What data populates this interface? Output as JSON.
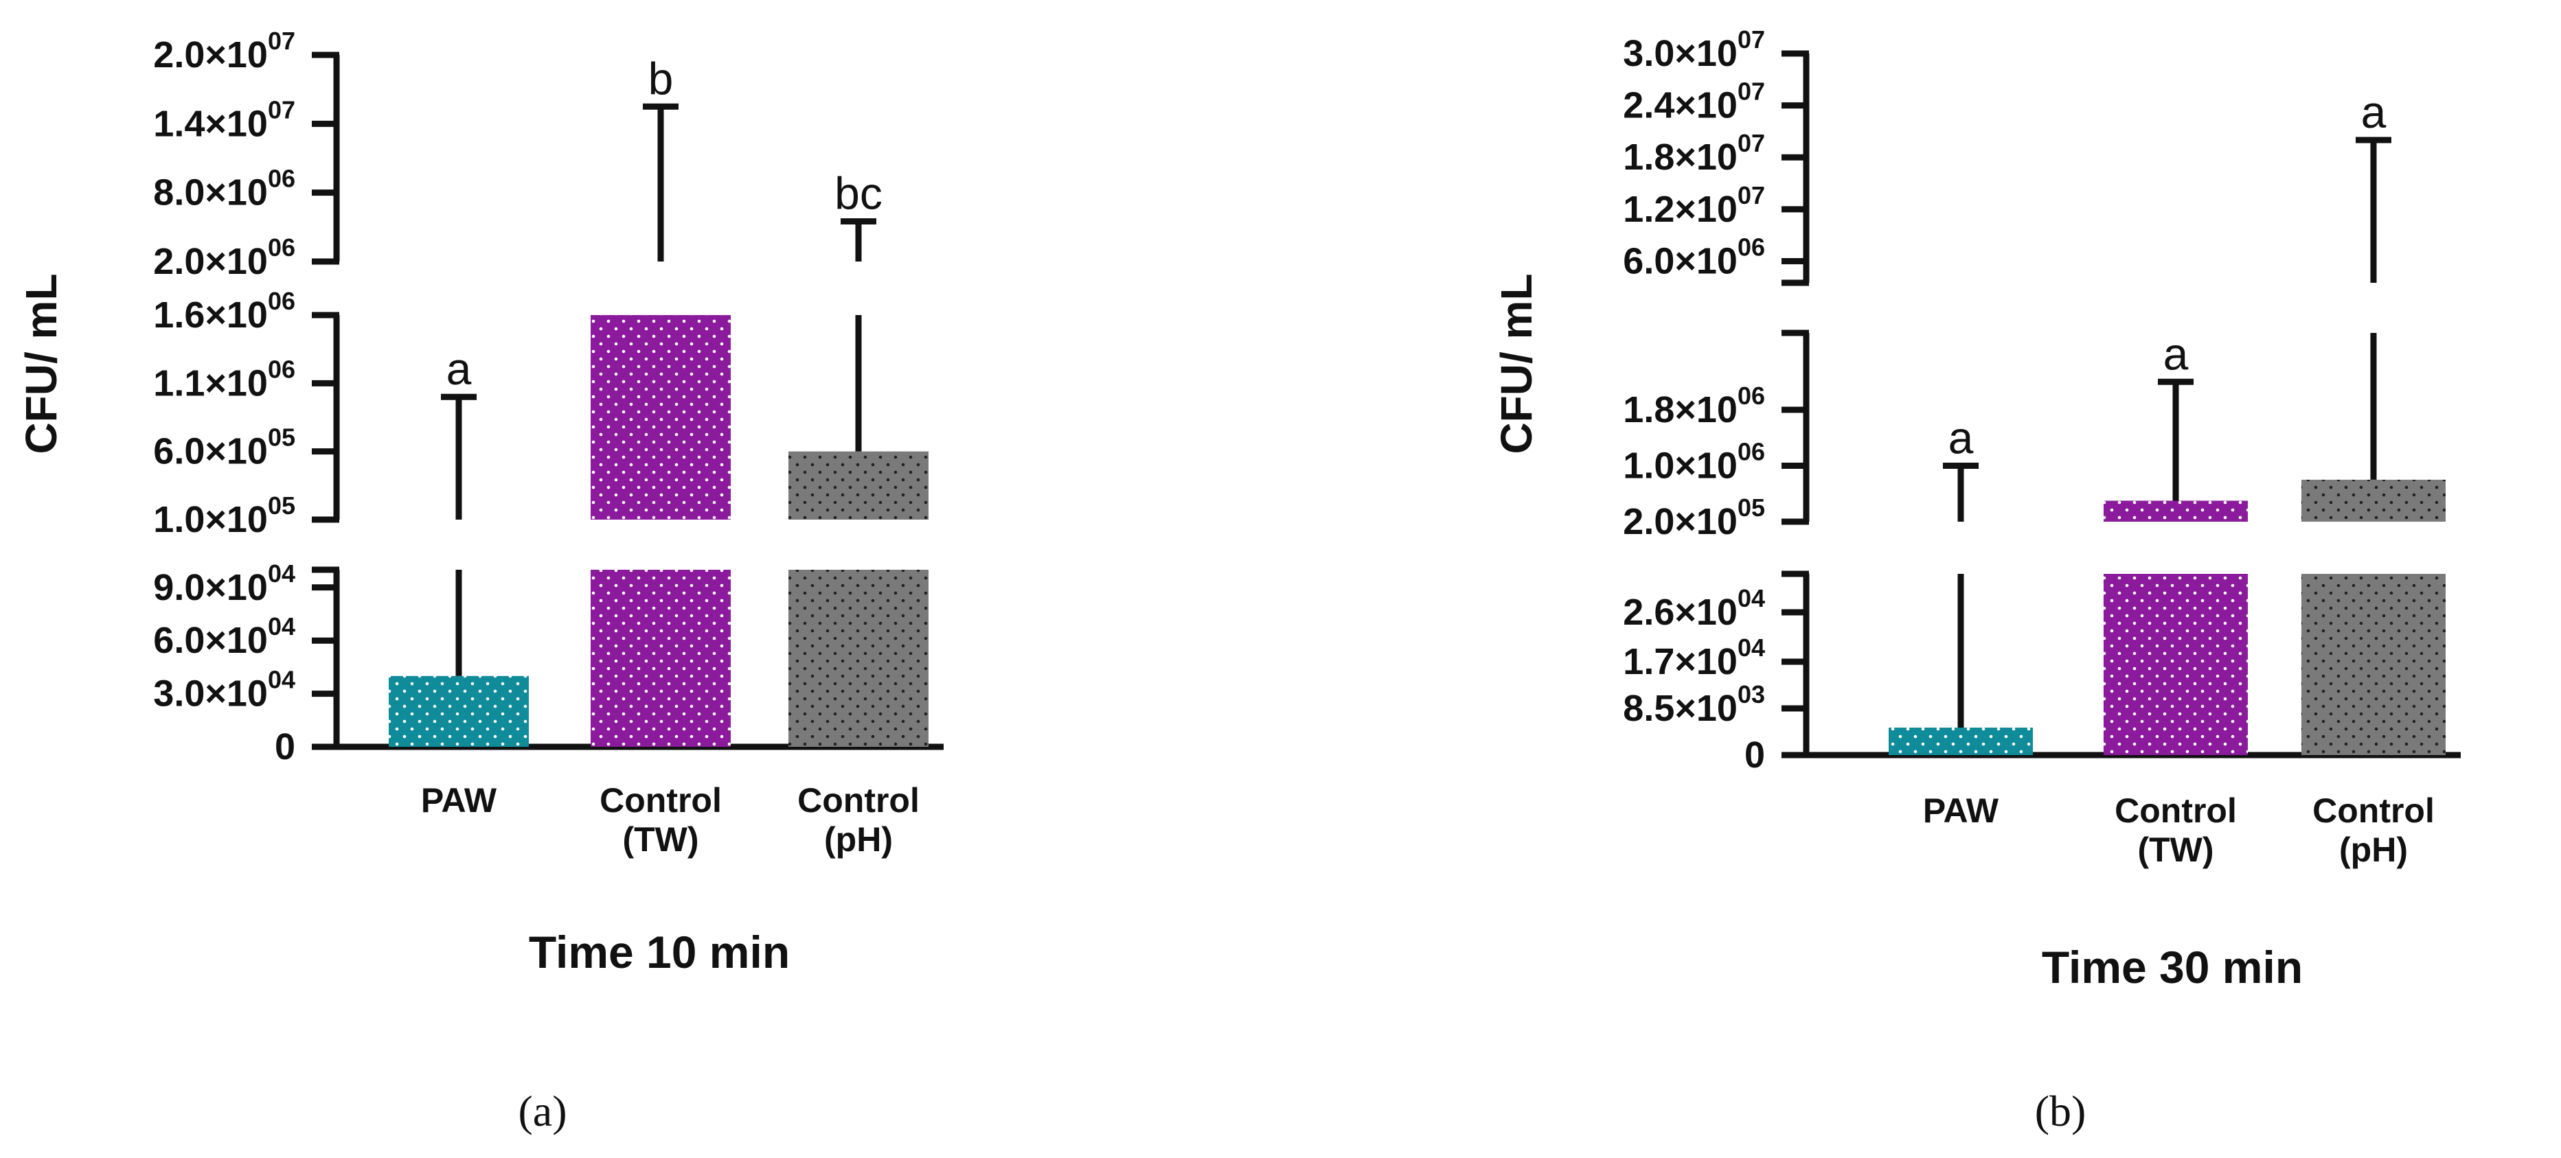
{
  "colors": {
    "paw": "#0f8b9a",
    "tw": "#8c1a9c",
    "ph": "#7a7a7a",
    "axis": "#111111"
  },
  "chart_data": [
    {
      "type": "bar",
      "panel_label": "(a)",
      "xlabel": "Time 10 min",
      "ylabel": "CFU/ mL",
      "categories": [
        {
          "line1": "PAW",
          "line2": ""
        },
        {
          "line1": "Control",
          "line2": "(TW)"
        },
        {
          "line1": "Control",
          "line2": "(pH)"
        }
      ],
      "values": [
        40000,
        1600000,
        600000
      ],
      "error_upper": [
        1000000,
        15500000,
        5500000
      ],
      "significance": [
        "a",
        "b",
        "bc"
      ],
      "broken_axis_segments": [
        {
          "range": [
            0,
            100000
          ],
          "ticks": [
            {
              "value": 0,
              "mant": "0",
              "exp": ""
            },
            {
              "value": 30000,
              "mant": "3.0×10",
              "exp": "04"
            },
            {
              "value": 60000,
              "mant": "6.0×10",
              "exp": "04"
            },
            {
              "value": 90000,
              "mant": "9.0×10",
              "exp": "04"
            }
          ]
        },
        {
          "range": [
            100000,
            1600000
          ],
          "ticks": [
            {
              "value": 100000,
              "mant": "1.0×10",
              "exp": "05"
            },
            {
              "value": 600000,
              "mant": "6.0×10",
              "exp": "05"
            },
            {
              "value": 1100000,
              "mant": "1.1×10",
              "exp": "06"
            },
            {
              "value": 1600000,
              "mant": "1.6×10",
              "exp": "06"
            }
          ]
        },
        {
          "range": [
            2000000,
            20000000
          ],
          "ticks": [
            {
              "value": 2000000,
              "mant": "2.0×10",
              "exp": "06"
            },
            {
              "value": 8000000,
              "mant": "8.0×10",
              "exp": "06"
            },
            {
              "value": 14000000,
              "mant": "1.4×10",
              "exp": "07"
            },
            {
              "value": 20000000,
              "mant": "2.0×10",
              "exp": "07"
            }
          ]
        }
      ]
    },
    {
      "type": "bar",
      "panel_label": "(b)",
      "xlabel": "Time 30 min",
      "ylabel": "CFU/ mL",
      "categories": [
        {
          "line1": "PAW",
          "line2": ""
        },
        {
          "line1": "Control",
          "line2": "(TW)"
        },
        {
          "line1": "Control",
          "line2": "(pH)"
        }
      ],
      "values": [
        5000,
        500000,
        800000
      ],
      "error_upper": [
        1000000,
        2200000,
        20000000
      ],
      "significance": [
        "a",
        "a",
        "a"
      ],
      "broken_axis_segments": [
        {
          "range": [
            0,
            33000
          ],
          "ticks": [
            {
              "value": 0,
              "mant": "0",
              "exp": ""
            },
            {
              "value": 8500,
              "mant": "8.5×10",
              "exp": "03"
            },
            {
              "value": 17000,
              "mant": "1.7×10",
              "exp": "04"
            },
            {
              "value": 26000,
              "mant": "2.6×10",
              "exp": "04"
            }
          ]
        },
        {
          "range": [
            200000,
            2900000
          ],
          "ticks": [
            {
              "value": 200000,
              "mant": "2.0×10",
              "exp": "05"
            },
            {
              "value": 1000000,
              "mant": "1.0×10",
              "exp": "06"
            },
            {
              "value": 1800000,
              "mant": "1.8×10",
              "exp": "06"
            }
          ]
        },
        {
          "range": [
            3500000,
            30000000
          ],
          "ticks": [
            {
              "value": 6000000,
              "mant": "6.0×10",
              "exp": "06"
            },
            {
              "value": 12000000,
              "mant": "1.2×10",
              "exp": "07"
            },
            {
              "value": 18000000,
              "mant": "1.8×10",
              "exp": "07"
            },
            {
              "value": 24000000,
              "mant": "2.4×10",
              "exp": "07"
            },
            {
              "value": 30000000,
              "mant": "3.0×10",
              "exp": "07"
            }
          ]
        }
      ]
    }
  ]
}
